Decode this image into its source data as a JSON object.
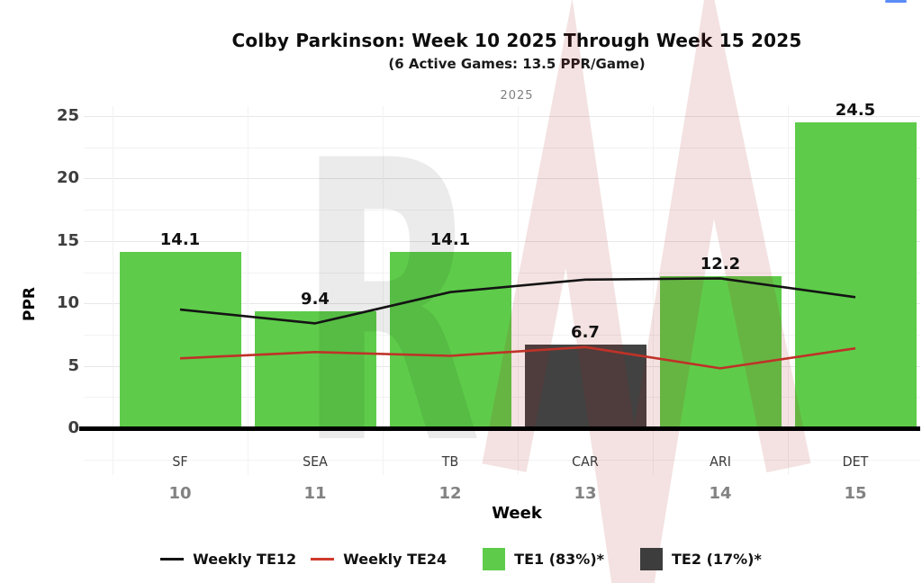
{
  "header": {
    "title": "Colby Parkinson: Week 10 2025 Through Week 15 2025",
    "subtitle": "(6 Active Games: 13.5 PPR/Game)",
    "facet_label": "2025"
  },
  "chart_data": {
    "type": "bar",
    "title": "Colby Parkinson: Week 10 2025 Through Week 15 2025",
    "subtitle": "(6 Active Games: 13.5 PPR/Game)",
    "facet": "2025",
    "xlabel": "Week",
    "ylabel": "PPR",
    "ylim": [
      0,
      25.8
    ],
    "yticks": [
      "0",
      "5",
      "10",
      "15",
      "20",
      "25"
    ],
    "grid": "on",
    "legend_position": "bottom",
    "categories": [
      {
        "opponent": "SF",
        "week": "10"
      },
      {
        "opponent": "SEA",
        "week": "11"
      },
      {
        "opponent": "TB",
        "week": "12"
      },
      {
        "opponent": "CAR",
        "week": "13"
      },
      {
        "opponent": "ARI",
        "week": "14"
      },
      {
        "opponent": "DET",
        "week": "15"
      }
    ],
    "bars": {
      "values": [
        14.1,
        9.4,
        14.1,
        6.7,
        12.2,
        24.5
      ],
      "labels": [
        "14.1",
        "9.4",
        "14.1",
        "6.7",
        "12.2",
        "24.5"
      ],
      "tier": [
        "TE1",
        "TE1",
        "TE1",
        "TE2",
        "TE1",
        "TE1"
      ]
    },
    "bar_colors": {
      "TE1": "#5ecc4a",
      "TE2": "#424242"
    },
    "series": [
      {
        "name": "Weekly TE12",
        "color": "#141414",
        "values": [
          9.5,
          8.4,
          10.9,
          11.9,
          12.0,
          10.5
        ]
      },
      {
        "name": "Weekly TE24",
        "color": "#bf3228",
        "values": [
          5.6,
          6.1,
          5.8,
          6.5,
          4.8,
          6.4
        ]
      }
    ],
    "legend": [
      {
        "label": "Weekly TE12",
        "swatch": "line",
        "color": "#141414"
      },
      {
        "label": "Weekly TE24",
        "swatch": "line",
        "color": "#d0392b"
      },
      {
        "label": "TE1 (83%)*",
        "swatch": "square",
        "color": "#5ecc4a"
      },
      {
        "label": "TE2 (17%)*",
        "swatch": "square",
        "color": "#3d3d3d"
      }
    ]
  },
  "watermark": {
    "letter_gray": "R",
    "letter_red": "M"
  },
  "accent_color": "#5b8bf7"
}
